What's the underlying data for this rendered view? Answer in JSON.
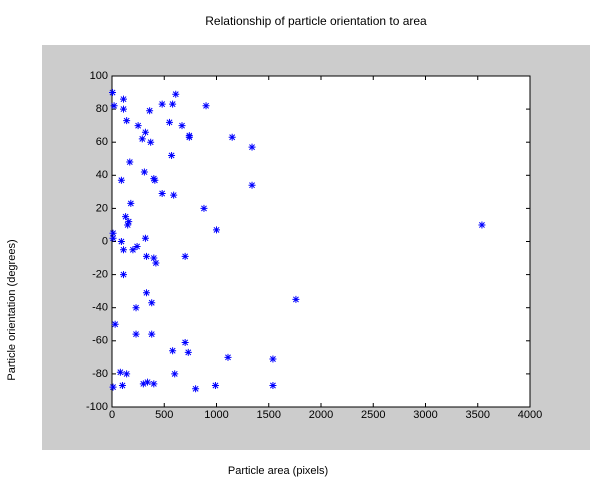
{
  "chart_data": {
    "type": "scatter",
    "title": "Relationship of particle orientation to area",
    "x_label": "Particle area (pixels)",
    "y_label": "Particle orientation (degrees)",
    "color": "#0000ff",
    "x": [
      5,
      20,
      110,
      110,
      140,
      170,
      90,
      250,
      290,
      320,
      370,
      360,
      480,
      550,
      580,
      610,
      670,
      740,
      740,
      900,
      1150,
      1340,
      1340,
      880,
      1000,
      310,
      410,
      400,
      480,
      590,
      570,
      180,
      130,
      160,
      150,
      10,
      10,
      240,
      200,
      110,
      90,
      320,
      330,
      400,
      420,
      700,
      110,
      230,
      330,
      380,
      30,
      230,
      380,
      580,
      700,
      730,
      1110,
      1540,
      1760,
      3540,
      80,
      140,
      10,
      100,
      300,
      340,
      400,
      600,
      800,
      990,
      1540
    ],
    "y": [
      90,
      82,
      86,
      80,
      73,
      48,
      37,
      70,
      62,
      66,
      60,
      79,
      83,
      72,
      83,
      89,
      70,
      63,
      64,
      82,
      63,
      57,
      34,
      20,
      7,
      42,
      37,
      38,
      29,
      28,
      52,
      23,
      15,
      12,
      10,
      5,
      2,
      -3,
      -5,
      -5,
      0,
      2,
      -9,
      -10,
      -13,
      -9,
      -20,
      -40,
      -31,
      -37,
      -50,
      -56,
      -56,
      -66,
      -61,
      -67,
      -70,
      -71,
      -35,
      10,
      -79,
      -80,
      -88,
      -87,
      -86,
      -85,
      -86,
      -80,
      -89,
      -87,
      -87
    ],
    "xlim": [
      0,
      4000
    ],
    "xticks": [
      0,
      500,
      1000,
      1500,
      2000,
      2500,
      3000,
      3500,
      4000
    ],
    "ylim": [
      -100,
      100
    ],
    "yticks": [
      -100,
      -80,
      -60,
      -40,
      -20,
      0,
      20,
      40,
      60,
      80,
      100
    ]
  }
}
